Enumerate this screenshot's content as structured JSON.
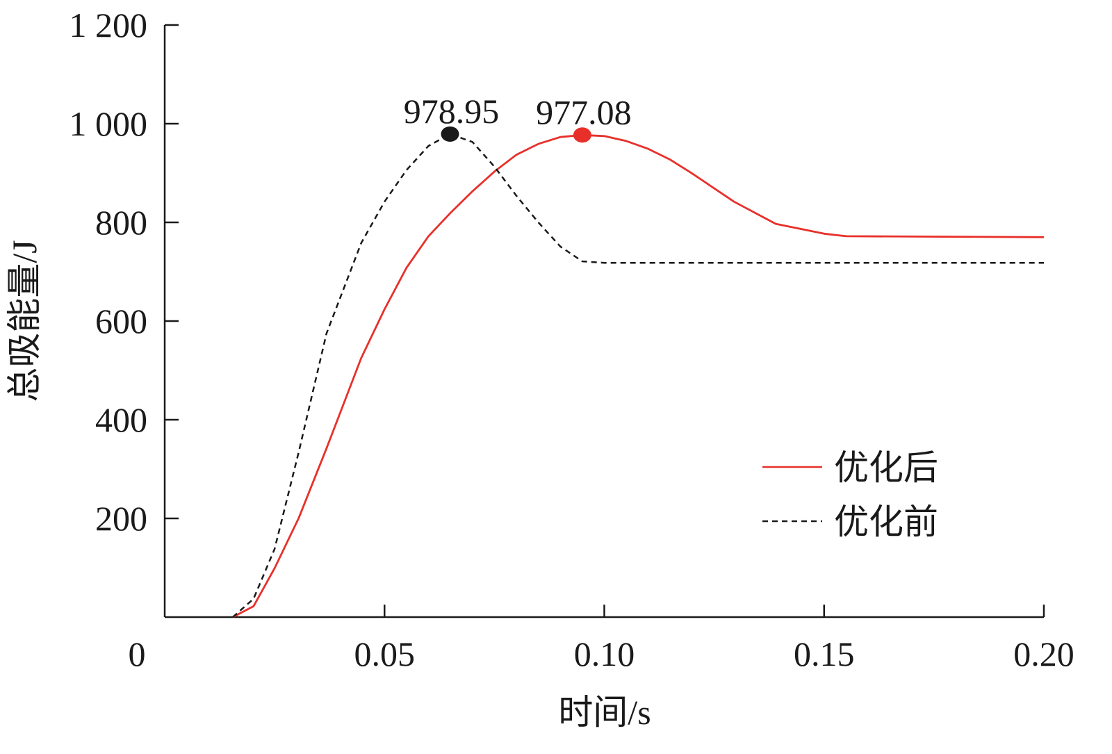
{
  "chart_data": {
    "type": "line",
    "title": "",
    "xlabel": "时间/s",
    "ylabel": "总吸能量/J",
    "xlim": [
      0,
      0.2
    ],
    "ylim": [
      0,
      1200
    ],
    "grid": false,
    "origin_label": "0",
    "x_ticks": [
      0.05,
      0.1,
      0.15,
      0.2
    ],
    "x_tick_labels": [
      "0.05",
      "0.10",
      "0.15",
      "0.20"
    ],
    "y_ticks": [
      200,
      400,
      600,
      800,
      1000,
      1200
    ],
    "y_tick_labels": [
      "200",
      "400",
      "600",
      "800",
      "1 000",
      "1 200"
    ],
    "legend_position": "center-right",
    "series": [
      {
        "name": "优化后",
        "color": "#e8302a",
        "style": "solid",
        "x": [
          0.0155,
          0.0202,
          0.025,
          0.0305,
          0.0368,
          0.0447,
          0.05,
          0.055,
          0.06,
          0.0652,
          0.07,
          0.075,
          0.08,
          0.085,
          0.09,
          0.095,
          0.1,
          0.105,
          0.11,
          0.115,
          0.12,
          0.1295,
          0.139,
          0.15,
          0.155,
          0.2
        ],
        "y": [
          0,
          22,
          99,
          201,
          342,
          525,
          624,
          708,
          772,
          821,
          863,
          903,
          937,
          959,
          973,
          977.08,
          975,
          965,
          949,
          927,
          899,
          842,
          797,
          777,
          772,
          770
        ]
      },
      {
        "name": "优化前",
        "color": "#1a1a1a",
        "style": "dashed",
        "x": [
          0.0155,
          0.0202,
          0.025,
          0.0305,
          0.0368,
          0.0447,
          0.05,
          0.055,
          0.06,
          0.0649,
          0.07,
          0.075,
          0.08,
          0.085,
          0.09,
          0.095,
          0.1,
          0.2
        ],
        "y": [
          0,
          37,
          138,
          335,
          575,
          758,
          842,
          906,
          955,
          978.95,
          963,
          913,
          854,
          800,
          751,
          721,
          718,
          718
        ]
      }
    ],
    "annotations": [
      {
        "text": "978.95",
        "x": 0.0649,
        "y": 978.95,
        "color": "#1a1a1a"
      },
      {
        "text": "977.08",
        "x": 0.095,
        "y": 977.08,
        "color": "#e8302a"
      }
    ]
  }
}
